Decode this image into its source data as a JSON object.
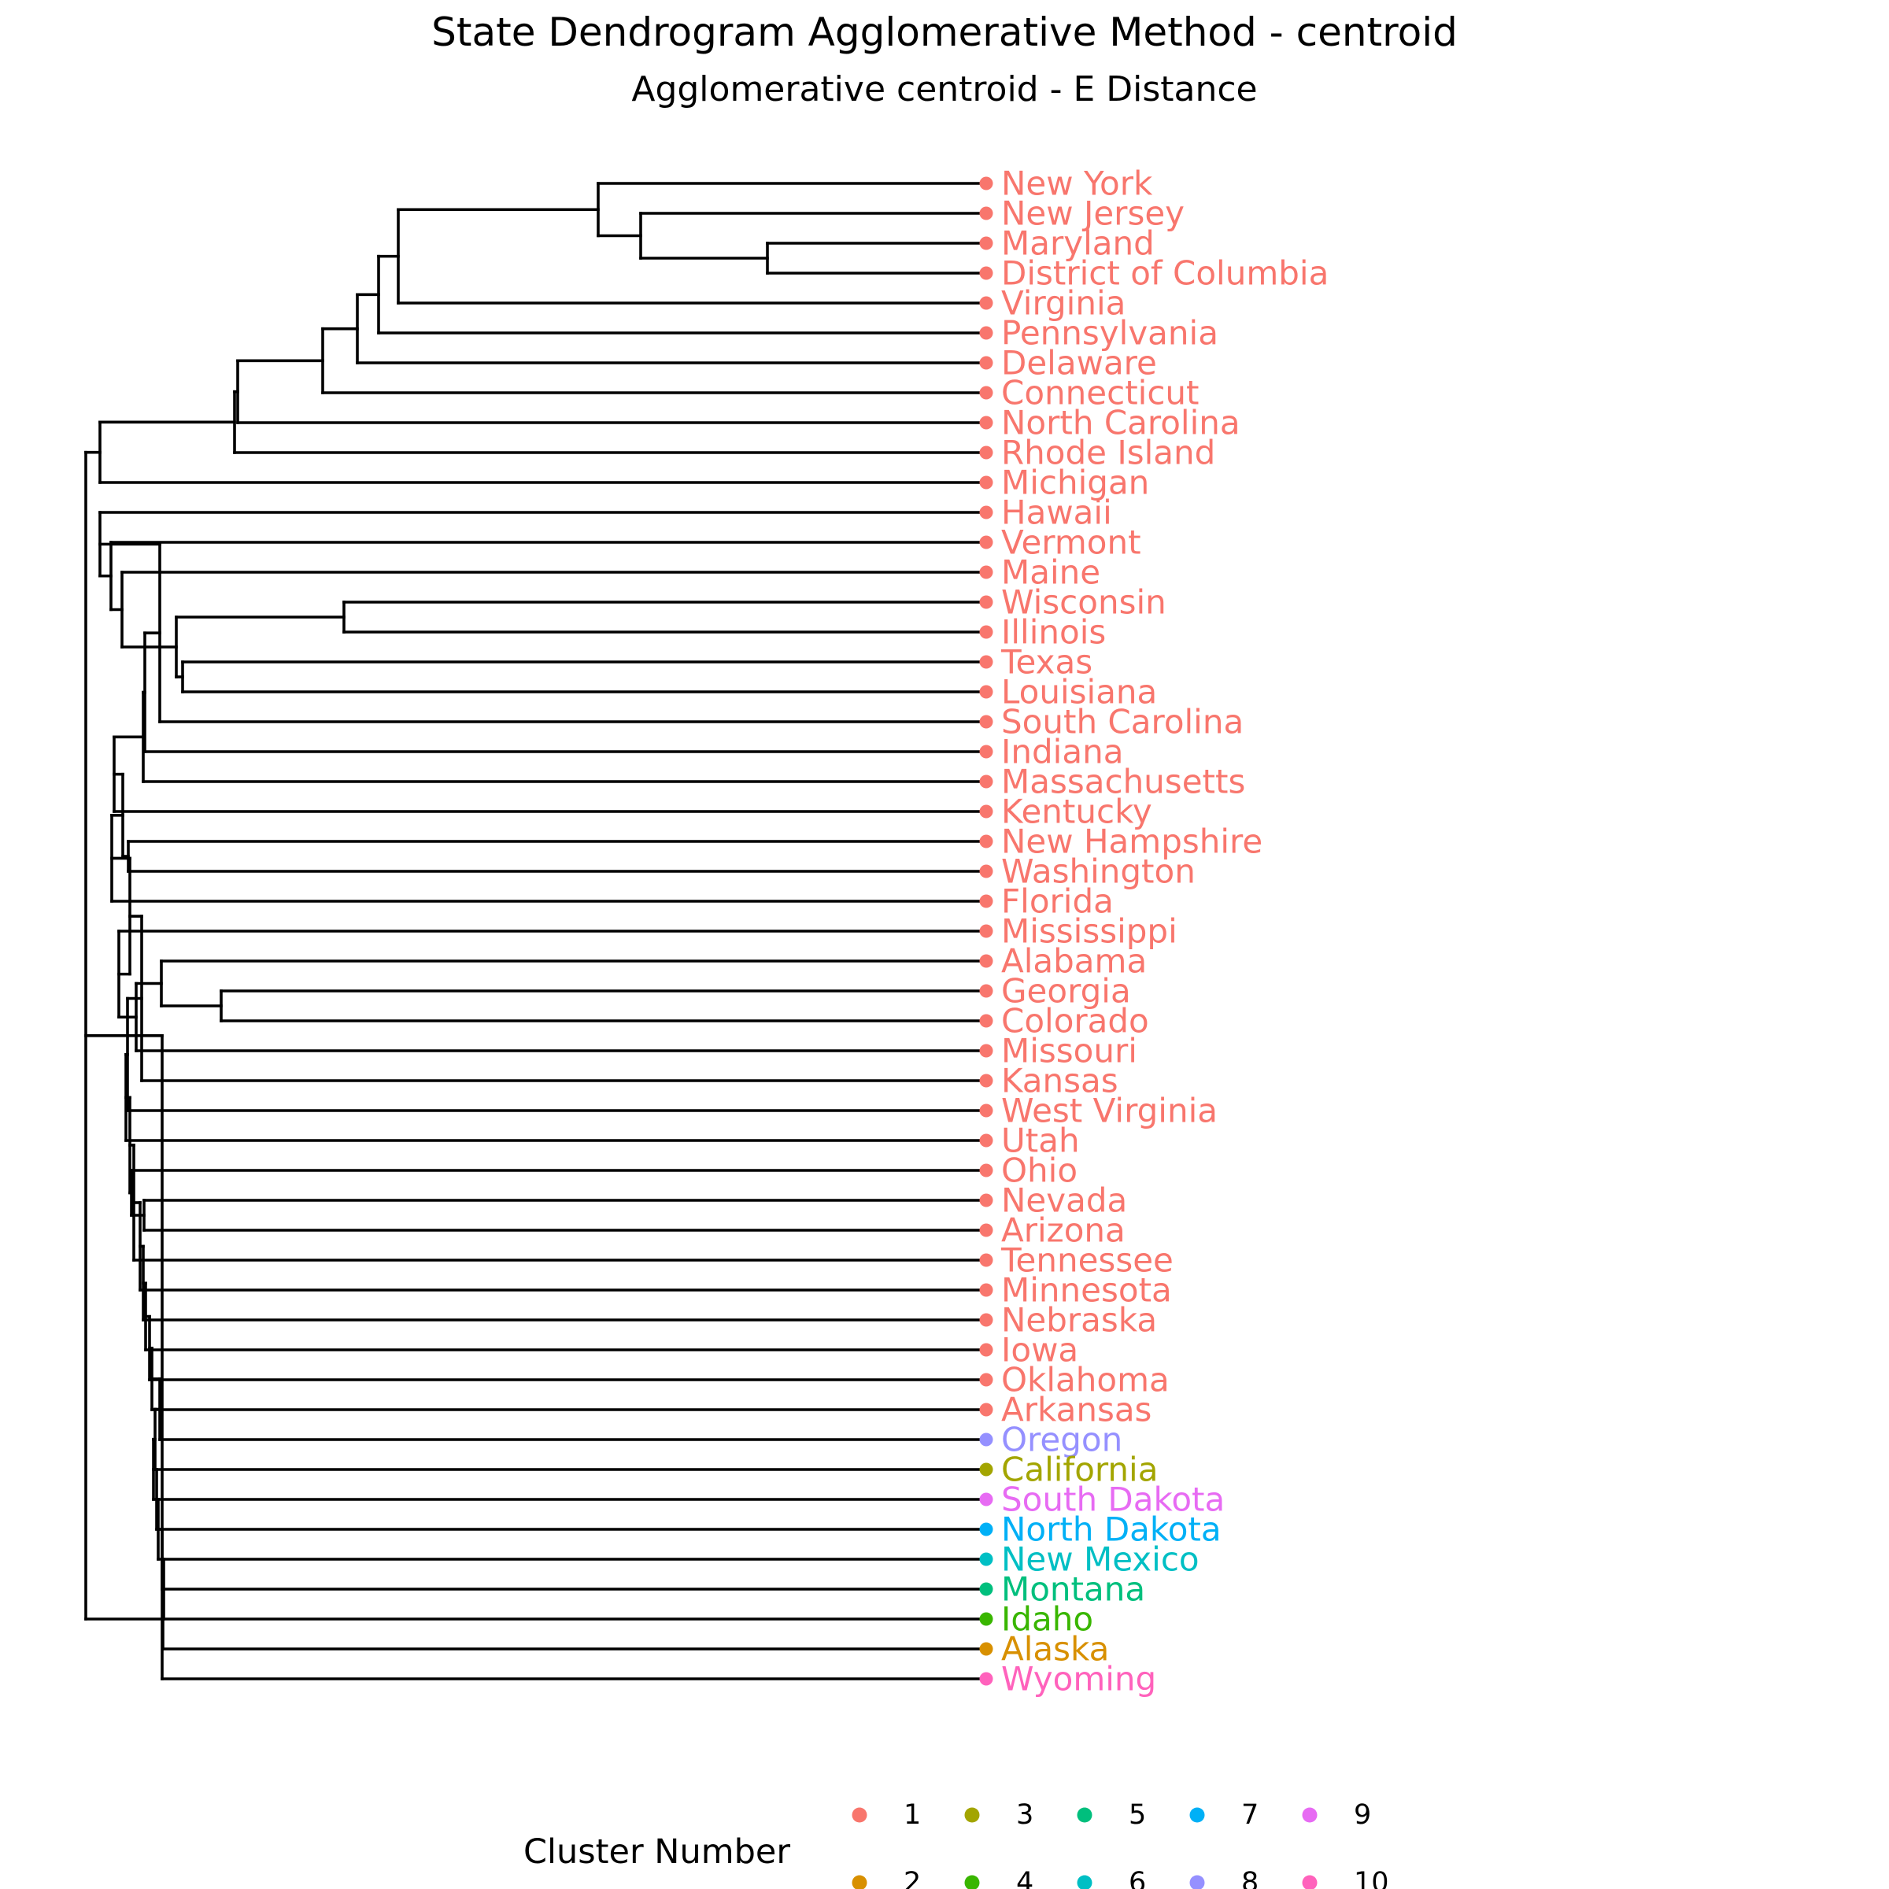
{
  "title": "State Dendrogram Agglomerative Method - centroid",
  "subtitle": "Agglomerative centroid - E Distance",
  "legend": {
    "title": "Cluster Number",
    "items": [
      {
        "label": "1",
        "color": "#F8766D"
      },
      {
        "label": "2",
        "color": "#D89000"
      },
      {
        "label": "3",
        "color": "#A3A500"
      },
      {
        "label": "4",
        "color": "#39B600"
      },
      {
        "label": "5",
        "color": "#00BF7D"
      },
      {
        "label": "6",
        "color": "#00BFC4"
      },
      {
        "label": "7",
        "color": "#00B0F6"
      },
      {
        "label": "8",
        "color": "#9590FF"
      },
      {
        "label": "9",
        "color": "#E76BF3"
      },
      {
        "label": "10",
        "color": "#FF62BC"
      }
    ]
  },
  "leaves": [
    {
      "name": "New York",
      "cluster": 1
    },
    {
      "name": "New Jersey",
      "cluster": 1
    },
    {
      "name": "Maryland",
      "cluster": 1
    },
    {
      "name": "District of Columbia",
      "cluster": 1
    },
    {
      "name": "Virginia",
      "cluster": 1
    },
    {
      "name": "Pennsylvania",
      "cluster": 1
    },
    {
      "name": "Delaware",
      "cluster": 1
    },
    {
      "name": "Connecticut",
      "cluster": 1
    },
    {
      "name": "North Carolina",
      "cluster": 1
    },
    {
      "name": "Rhode Island",
      "cluster": 1
    },
    {
      "name": "Michigan",
      "cluster": 1
    },
    {
      "name": "Hawaii",
      "cluster": 1
    },
    {
      "name": "Vermont",
      "cluster": 1
    },
    {
      "name": "Maine",
      "cluster": 1
    },
    {
      "name": "Wisconsin",
      "cluster": 1
    },
    {
      "name": "Illinois",
      "cluster": 1
    },
    {
      "name": "Texas",
      "cluster": 1
    },
    {
      "name": "Louisiana",
      "cluster": 1
    },
    {
      "name": "South Carolina",
      "cluster": 1
    },
    {
      "name": "Indiana",
      "cluster": 1
    },
    {
      "name": "Massachusetts",
      "cluster": 1
    },
    {
      "name": "Kentucky",
      "cluster": 1
    },
    {
      "name": "New Hampshire",
      "cluster": 1
    },
    {
      "name": "Washington",
      "cluster": 1
    },
    {
      "name": "Florida",
      "cluster": 1
    },
    {
      "name": "Mississippi",
      "cluster": 1
    },
    {
      "name": "Alabama",
      "cluster": 1
    },
    {
      "name": "Georgia",
      "cluster": 1
    },
    {
      "name": "Colorado",
      "cluster": 1
    },
    {
      "name": "Missouri",
      "cluster": 1
    },
    {
      "name": "Kansas",
      "cluster": 1
    },
    {
      "name": "West Virginia",
      "cluster": 1
    },
    {
      "name": "Utah",
      "cluster": 1
    },
    {
      "name": "Ohio",
      "cluster": 1
    },
    {
      "name": "Nevada",
      "cluster": 1
    },
    {
      "name": "Arizona",
      "cluster": 1
    },
    {
      "name": "Tennessee",
      "cluster": 1
    },
    {
      "name": "Minnesota",
      "cluster": 1
    },
    {
      "name": "Nebraska",
      "cluster": 1
    },
    {
      "name": "Iowa",
      "cluster": 1
    },
    {
      "name": "Oklahoma",
      "cluster": 1
    },
    {
      "name": "Arkansas",
      "cluster": 1
    },
    {
      "name": "Oregon",
      "cluster": 8
    },
    {
      "name": "California",
      "cluster": 3
    },
    {
      "name": "South Dakota",
      "cluster": 9
    },
    {
      "name": "North Dakota",
      "cluster": 7
    },
    {
      "name": "New Mexico",
      "cluster": 6
    },
    {
      "name": "Montana",
      "cluster": 5
    },
    {
      "name": "Idaho",
      "cluster": 4
    },
    {
      "name": "Alaska",
      "cluster": 2
    },
    {
      "name": "Wyoming",
      "cluster": 10
    }
  ]
}
